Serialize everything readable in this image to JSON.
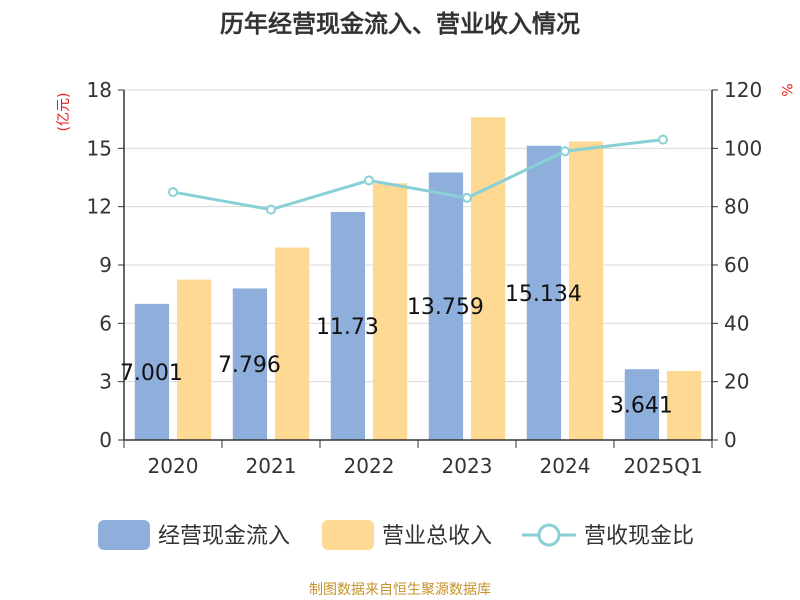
{
  "title": "历年经营现金流入、营业收入情况",
  "source": "制图数据来自恒生聚源数据库",
  "left_unit": "(亿元)",
  "right_unit": "%",
  "colors": {
    "cash_inflow": "#8eaedb",
    "revenue": "#fed994",
    "ratio": "#88d0d6",
    "axis": "#333333",
    "grid": "#d9d9d9"
  },
  "chart_data": {
    "type": "bar",
    "categories": [
      "2020",
      "2021",
      "2022",
      "2023",
      "2024",
      "2025Q1"
    ],
    "left_axis": {
      "ticks": [
        "0",
        "3",
        "6",
        "9",
        "12",
        "15",
        "18"
      ],
      "ylim": [
        0,
        18
      ]
    },
    "right_axis": {
      "ticks": [
        "0",
        "20",
        "40",
        "60",
        "80",
        "100",
        "120"
      ],
      "ylim": [
        0,
        120
      ]
    },
    "series": [
      {
        "name": "经营现金流入",
        "type": "bar",
        "axis": "left",
        "values": [
          7.001,
          7.796,
          11.73,
          13.759,
          15.134,
          3.641
        ],
        "labels": [
          "7.001",
          "7.796",
          "11.73",
          "13.759",
          "15.134",
          "3.641"
        ]
      },
      {
        "name": "营业总收入",
        "type": "bar",
        "axis": "left",
        "values": [
          8.25,
          9.9,
          13.2,
          16.6,
          15.35,
          3.55
        ]
      },
      {
        "name": "营收现金比",
        "type": "line",
        "axis": "right",
        "values": [
          85,
          79,
          89,
          83,
          99,
          103
        ]
      }
    ]
  }
}
